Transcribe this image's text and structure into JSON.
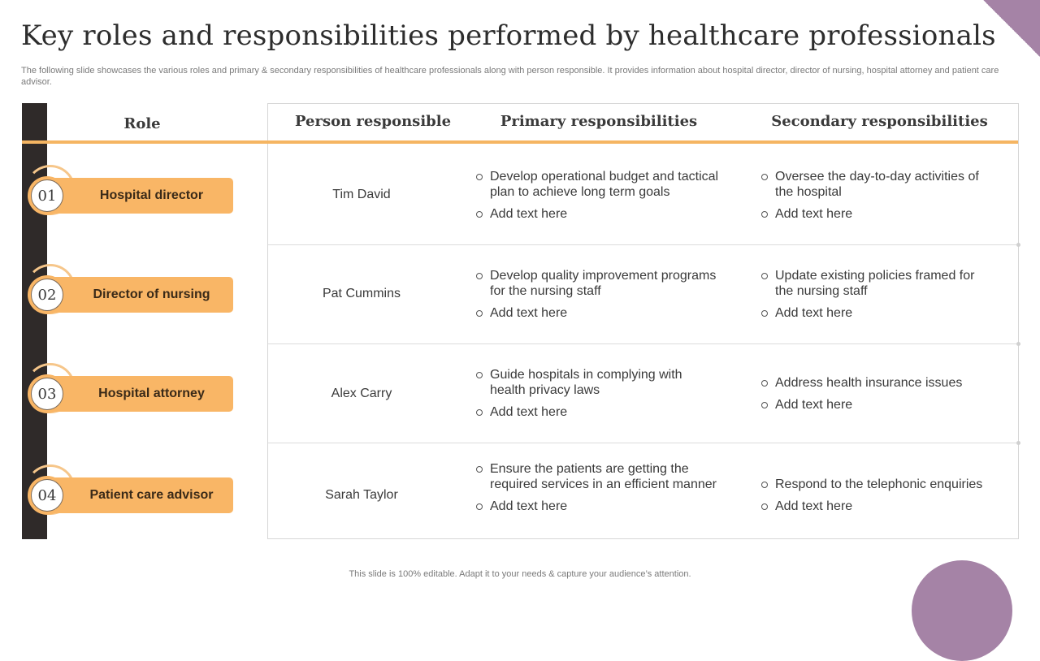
{
  "title": "Key roles and responsibilities performed by healthcare professionals",
  "subtitle": "The following slide showcases the various roles and primary & secondary responsibilities of healthcare professionals along with person responsible. It provides information about hospital director, director of nursing, hospital attorney and patient care advisor.",
  "headers": {
    "role": "Role",
    "person": "Person responsible",
    "primary": "Primary responsibilities",
    "secondary": "Secondary responsibilities"
  },
  "rows": [
    {
      "number": "01",
      "role": "Hospital director",
      "person": "Tim David",
      "primary": [
        "Develop operational budget and tactical plan to achieve long term goals",
        "Add text here"
      ],
      "secondary": [
        "Oversee the day-to-day activities of the hospital",
        "Add text here"
      ]
    },
    {
      "number": "02",
      "role": "Director of nursing",
      "person": "Pat Cummins",
      "primary": [
        "Develop quality improvement programs for the nursing staff",
        "Add text here"
      ],
      "secondary": [
        "Update existing policies framed for the nursing staff",
        "Add text here"
      ]
    },
    {
      "number": "03",
      "role": "Hospital attorney",
      "person": "Alex Carry",
      "primary": [
        "Guide hospitals in complying with health privacy laws",
        "Add text here"
      ],
      "secondary": [
        "Address health insurance issues",
        "Add text here"
      ]
    },
    {
      "number": "04",
      "role": "Patient care advisor",
      "person": "Sarah Taylor",
      "primary": [
        "Ensure the patients are getting the required services in an efficient manner",
        "Add text here"
      ],
      "secondary": [
        "Respond to the telephonic enquiries",
        "Add text here"
      ]
    }
  ],
  "footer": "This slide is 100% editable. Adapt it to your needs & capture your audience’s attention.",
  "colors": {
    "accent": "#f9b666",
    "dark": "#2f2a29",
    "purple": "#a583a6"
  }
}
